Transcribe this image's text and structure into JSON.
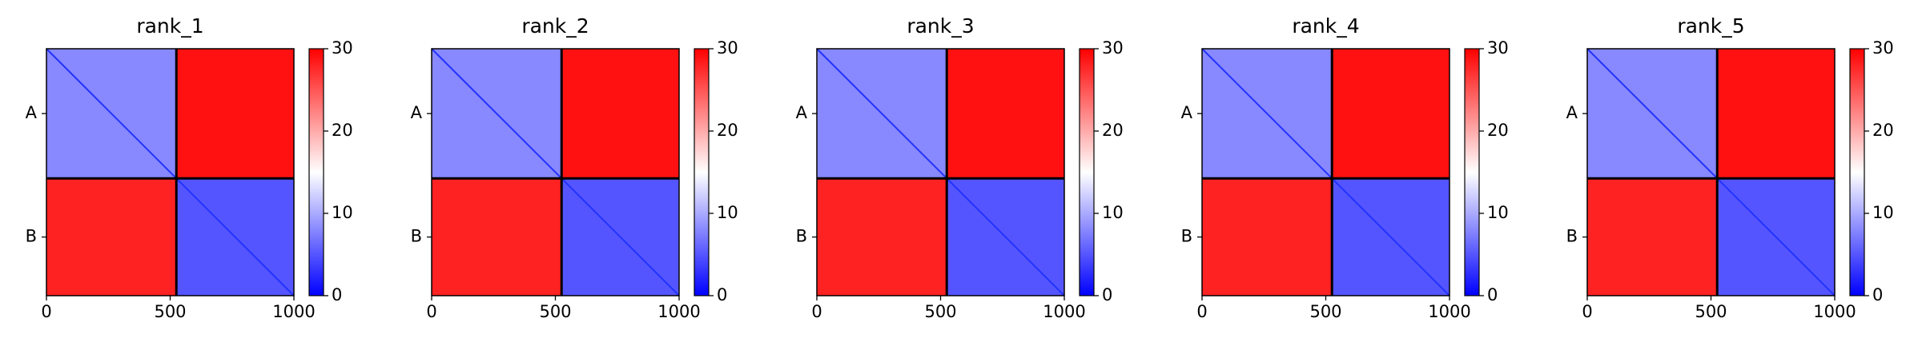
{
  "chart_data": [
    {
      "type": "heatmap",
      "title": "rank_1",
      "categories": [
        "A",
        "B"
      ],
      "chain_breaks": [
        525
      ],
      "values": [
        [
          8,
          29
        ],
        [
          28,
          5
        ]
      ],
      "xlim": [
        0,
        1000
      ],
      "xticks": [
        0,
        500,
        1000
      ],
      "colormap": "bwr",
      "clim": [
        0,
        30
      ],
      "cticks": [
        0,
        10,
        20,
        30
      ]
    },
    {
      "type": "heatmap",
      "title": "rank_2",
      "categories": [
        "A",
        "B"
      ],
      "chain_breaks": [
        525
      ],
      "values": [
        [
          8,
          29
        ],
        [
          28,
          5
        ]
      ],
      "xlim": [
        0,
        1000
      ],
      "xticks": [
        0,
        500,
        1000
      ],
      "colormap": "bwr",
      "clim": [
        0,
        30
      ],
      "cticks": [
        0,
        10,
        20,
        30
      ]
    },
    {
      "type": "heatmap",
      "title": "rank_3",
      "categories": [
        "A",
        "B"
      ],
      "chain_breaks": [
        525
      ],
      "values": [
        [
          8,
          29
        ],
        [
          28,
          5
        ]
      ],
      "xlim": [
        0,
        1000
      ],
      "xticks": [
        0,
        500,
        1000
      ],
      "colormap": "bwr",
      "clim": [
        0,
        30
      ],
      "cticks": [
        0,
        10,
        20,
        30
      ]
    },
    {
      "type": "heatmap",
      "title": "rank_4",
      "categories": [
        "A",
        "B"
      ],
      "chain_breaks": [
        525
      ],
      "values": [
        [
          8,
          29
        ],
        [
          28,
          5
        ]
      ],
      "xlim": [
        0,
        1000
      ],
      "xticks": [
        0,
        500,
        1000
      ],
      "colormap": "bwr",
      "clim": [
        0,
        30
      ],
      "cticks": [
        0,
        10,
        20,
        30
      ]
    },
    {
      "type": "heatmap",
      "title": "rank_5",
      "categories": [
        "A",
        "B"
      ],
      "chain_breaks": [
        525
      ],
      "values": [
        [
          8,
          29
        ],
        [
          28,
          5
        ]
      ],
      "xlim": [
        0,
        1000
      ],
      "xticks": [
        0,
        500,
        1000
      ],
      "colormap": "bwr",
      "clim": [
        0,
        30
      ],
      "cticks": [
        0,
        10,
        20,
        30
      ]
    }
  ]
}
